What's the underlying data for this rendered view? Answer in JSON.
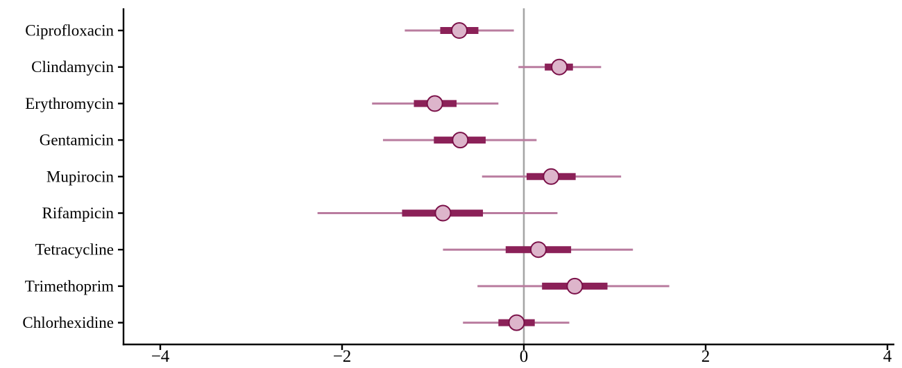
{
  "chart_data": {
    "type": "forest",
    "title": "",
    "xlabel": "",
    "ylabel": "",
    "xlim": [
      -4,
      4
    ],
    "xticks": [
      -4,
      -2,
      0,
      2,
      4
    ],
    "xtick_labels": [
      "−4",
      "−2",
      "0",
      "2",
      "4"
    ],
    "reference_line_x": 0,
    "grid": false,
    "categories": [
      "Ciprofloxacin",
      "Clindamycin",
      "Erythromycin",
      "Gentamicin",
      "Mupirocin",
      "Rifampicin",
      "Tetracycline",
      "Trimethoprim",
      "Chlorhexidine"
    ],
    "points": [
      {
        "label": "Ciprofloxacin",
        "estimate": -0.71,
        "inner": [
          -0.92,
          -0.5
        ],
        "outer": [
          -1.31,
          -0.11
        ]
      },
      {
        "label": "Clindamycin",
        "estimate": 0.39,
        "inner": [
          0.23,
          0.54
        ],
        "outer": [
          -0.06,
          0.85
        ]
      },
      {
        "label": "Erythromycin",
        "estimate": -0.98,
        "inner": [
          -1.21,
          -0.74
        ],
        "outer": [
          -1.67,
          -0.28
        ]
      },
      {
        "label": "Gentamicin",
        "estimate": -0.7,
        "inner": [
          -0.99,
          -0.42
        ],
        "outer": [
          -1.55,
          0.14
        ]
      },
      {
        "label": "Mupirocin",
        "estimate": 0.3,
        "inner": [
          0.03,
          0.57
        ],
        "outer": [
          -0.46,
          1.07
        ]
      },
      {
        "label": "Rifampicin",
        "estimate": -0.89,
        "inner": [
          -1.34,
          -0.45
        ],
        "outer": [
          -2.27,
          0.37
        ]
      },
      {
        "label": "Tetracycline",
        "estimate": 0.16,
        "inner": [
          -0.2,
          0.52
        ],
        "outer": [
          -0.89,
          1.2
        ]
      },
      {
        "label": "Trimethoprim",
        "estimate": 0.56,
        "inner": [
          0.2,
          0.92
        ],
        "outer": [
          -0.51,
          1.6
        ]
      },
      {
        "label": "Chlorhexidine",
        "estimate": -0.08,
        "inner": [
          -0.28,
          0.12
        ],
        "outer": [
          -0.67,
          0.5
        ]
      }
    ],
    "colors": {
      "outer_line": "#b97c9f",
      "inner_line": "#8b2158",
      "marker_fill": "#ddb5cb",
      "marker_stroke": "#7a1048",
      "reference_line": "#a6a6a6",
      "axis": "#000000"
    }
  }
}
